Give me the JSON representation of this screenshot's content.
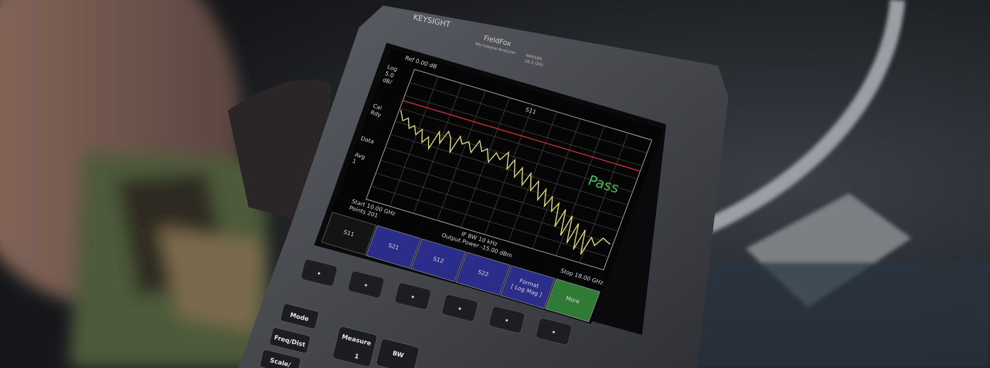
{
  "brand": "KEYSIGHT",
  "model": {
    "name": "FieldFox",
    "subtitle": "Microwave Analyzer",
    "number": "N9918A",
    "range": "26.5 GHz"
  },
  "screen": {
    "ref": "Ref 0.00 dB",
    "scale": [
      "Log",
      "5.0",
      "dB/"
    ],
    "status": [
      "Cal",
      "Rdy",
      "Data",
      "Avg",
      "1"
    ],
    "trace": "S11",
    "verdict": "Pass",
    "start": "Start 10.00 GHz",
    "points": "Points 201",
    "ifbw": "IF BW 10 kHz",
    "power": "Output Power -15.00 dBm",
    "stop": "Stop 18.00 GHz"
  },
  "softkeys": [
    "S11",
    "S21",
    "S12",
    "S22",
    "Format",
    "[ Log Mag ]",
    "More"
  ],
  "keys": [
    "Mode",
    "Freq/Dist",
    "Measure",
    "1",
    "BW",
    "Scale/"
  ]
}
